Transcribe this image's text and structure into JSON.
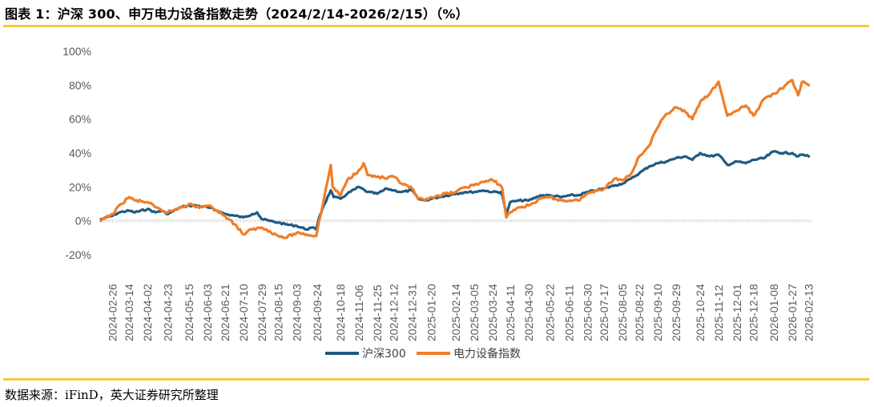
{
  "header": {
    "title": "图表 1：沪深 300、申万电力设备指数走势（2024/2/14-2026/2/15）（%）"
  },
  "footer": {
    "source": "数据来源：iFinD，英大证券研究所整理"
  },
  "chart_data": {
    "type": "line",
    "title": "图表 1：沪深 300、申万电力设备指数走势（2024/2/14-2026/2/15）（%）",
    "xlabel": "",
    "ylabel": "",
    "ylim": [
      -20,
      100
    ],
    "yticks": [
      -20,
      0,
      20,
      40,
      60,
      80,
      100
    ],
    "ytick_labels": [
      "-20%",
      "0%",
      "20%",
      "40%",
      "60%",
      "80%",
      "100%"
    ],
    "grid": false,
    "legend_position": "bottom-center",
    "x_start": "2024-02-14",
    "x_end": "2026-02-15",
    "xtick_labels": [
      "2024-02-26",
      "2024-03-14",
      "2024-04-02",
      "2024-04-23",
      "2024-05-15",
      "2024-06-03",
      "2024-06-21",
      "2024-07-10",
      "2024-07-29",
      "2024-08-15",
      "2024-09-03",
      "2024-09-24",
      "2024-10-18",
      "2024-11-06",
      "2024-11-25",
      "2024-12-12",
      "2024-12-31",
      "2025-01-20",
      "2025-02-14",
      "2025-03-05",
      "2025-03-24",
      "2025-04-11",
      "2025-04-30",
      "2025-05-22",
      "2025-06-11",
      "2025-06-30",
      "2025-07-17",
      "2025-08-05",
      "2025-08-22",
      "2025-09-10",
      "2025-09-29",
      "2025-10-24",
      "2025-11-12",
      "2025-12-01",
      "2025-12-18",
      "2026-01-08",
      "2026-01-27",
      "2026-02-13"
    ],
    "series": [
      {
        "name": "沪深300",
        "color": "#1F5A82",
        "points": [
          [
            "2024-02-14",
            1
          ],
          [
            "2024-02-26",
            3
          ],
          [
            "2024-03-04",
            5
          ],
          [
            "2024-03-14",
            6
          ],
          [
            "2024-03-20",
            5
          ],
          [
            "2024-04-02",
            7
          ],
          [
            "2024-04-10",
            5
          ],
          [
            "2024-04-17",
            6
          ],
          [
            "2024-04-23",
            4
          ],
          [
            "2024-05-06",
            8
          ],
          [
            "2024-05-15",
            9
          ],
          [
            "2024-05-22",
            9
          ],
          [
            "2024-06-03",
            8
          ],
          [
            "2024-06-13",
            6
          ],
          [
            "2024-06-21",
            4
          ],
          [
            "2024-07-01",
            3
          ],
          [
            "2024-07-10",
            2
          ],
          [
            "2024-07-19",
            4
          ],
          [
            "2024-07-24",
            5
          ],
          [
            "2024-07-29",
            1
          ],
          [
            "2024-08-06",
            0
          ],
          [
            "2024-08-15",
            -1
          ],
          [
            "2024-08-22",
            -2
          ],
          [
            "2024-09-03",
            -3
          ],
          [
            "2024-09-13",
            -5
          ],
          [
            "2024-09-18",
            -4
          ],
          [
            "2024-09-23",
            -5
          ],
          [
            "2024-09-26",
            2
          ],
          [
            "2024-09-30",
            8
          ],
          [
            "2024-10-08",
            18
          ],
          [
            "2024-10-11",
            14
          ],
          [
            "2024-10-18",
            13
          ],
          [
            "2024-10-25",
            16
          ],
          [
            "2024-11-06",
            20
          ],
          [
            "2024-11-15",
            17
          ],
          [
            "2024-11-25",
            16
          ],
          [
            "2024-12-05",
            19
          ],
          [
            "2024-12-12",
            18
          ],
          [
            "2024-12-20",
            17
          ],
          [
            "2024-12-31",
            18
          ],
          [
            "2025-01-06",
            13
          ],
          [
            "2025-01-13",
            12
          ],
          [
            "2025-01-20",
            13
          ],
          [
            "2025-01-27",
            14
          ],
          [
            "2025-02-14",
            16
          ],
          [
            "2025-02-24",
            17
          ],
          [
            "2025-03-05",
            17
          ],
          [
            "2025-03-14",
            18
          ],
          [
            "2025-03-24",
            17
          ],
          [
            "2025-04-01",
            17
          ],
          [
            "2025-04-03",
            15
          ],
          [
            "2025-04-07",
            4
          ],
          [
            "2025-04-11",
            11
          ],
          [
            "2025-04-20",
            12
          ],
          [
            "2025-04-30",
            12
          ],
          [
            "2025-05-12",
            15
          ],
          [
            "2025-05-22",
            15
          ],
          [
            "2025-06-03",
            14
          ],
          [
            "2025-06-11",
            15
          ],
          [
            "2025-06-20",
            15
          ],
          [
            "2025-06-30",
            17
          ],
          [
            "2025-07-08",
            18
          ],
          [
            "2025-07-17",
            19
          ],
          [
            "2025-07-28",
            21
          ],
          [
            "2025-08-05",
            22
          ],
          [
            "2025-08-14",
            25
          ],
          [
            "2025-08-22",
            28
          ],
          [
            "2025-09-01",
            32
          ],
          [
            "2025-09-10",
            34
          ],
          [
            "2025-09-19",
            35
          ],
          [
            "2025-09-29",
            37
          ],
          [
            "2025-10-09",
            38
          ],
          [
            "2025-10-16",
            36
          ],
          [
            "2025-10-24",
            40
          ],
          [
            "2025-11-03",
            38
          ],
          [
            "2025-11-12",
            39
          ],
          [
            "2025-11-21",
            33
          ],
          [
            "2025-12-01",
            35
          ],
          [
            "2025-12-10",
            34
          ],
          [
            "2025-12-18",
            36
          ],
          [
            "2025-12-29",
            37
          ],
          [
            "2026-01-08",
            41
          ],
          [
            "2026-01-16",
            40
          ],
          [
            "2026-01-27",
            40
          ],
          [
            "2026-02-02",
            38
          ],
          [
            "2026-02-06",
            39
          ],
          [
            "2026-02-13",
            38
          ]
        ]
      },
      {
        "name": "电力设备指数",
        "color": "#F07D28",
        "points": [
          [
            "2024-02-14",
            0
          ],
          [
            "2024-02-26",
            4
          ],
          [
            "2024-03-06",
            10
          ],
          [
            "2024-03-14",
            14
          ],
          [
            "2024-03-20",
            12
          ],
          [
            "2024-04-02",
            11
          ],
          [
            "2024-04-10",
            8
          ],
          [
            "2024-04-17",
            6
          ],
          [
            "2024-04-23",
            5
          ],
          [
            "2024-05-06",
            8
          ],
          [
            "2024-05-15",
            10
          ],
          [
            "2024-05-22",
            8
          ],
          [
            "2024-06-03",
            9
          ],
          [
            "2024-06-13",
            6
          ],
          [
            "2024-06-21",
            3
          ],
          [
            "2024-07-01",
            -2
          ],
          [
            "2024-07-10",
            -8
          ],
          [
            "2024-07-19",
            -5
          ],
          [
            "2024-07-29",
            -4
          ],
          [
            "2024-08-06",
            -6
          ],
          [
            "2024-08-15",
            -9
          ],
          [
            "2024-08-22",
            -10
          ],
          [
            "2024-09-03",
            -7
          ],
          [
            "2024-09-13",
            -8
          ],
          [
            "2024-09-23",
            -9
          ],
          [
            "2024-09-26",
            0
          ],
          [
            "2024-09-30",
            10
          ],
          [
            "2024-10-08",
            33
          ],
          [
            "2024-10-10",
            20
          ],
          [
            "2024-10-18",
            15
          ],
          [
            "2024-10-25",
            24
          ],
          [
            "2024-11-06",
            30
          ],
          [
            "2024-11-11",
            34
          ],
          [
            "2024-11-15",
            27
          ],
          [
            "2024-11-25",
            26
          ],
          [
            "2024-12-05",
            25
          ],
          [
            "2024-12-12",
            26
          ],
          [
            "2024-12-20",
            22
          ],
          [
            "2024-12-31",
            19
          ],
          [
            "2025-01-06",
            13
          ],
          [
            "2025-01-13",
            12
          ],
          [
            "2025-01-20",
            14
          ],
          [
            "2025-01-27",
            15
          ],
          [
            "2025-02-14",
            17
          ],
          [
            "2025-02-24",
            20
          ],
          [
            "2025-03-05",
            21
          ],
          [
            "2025-03-14",
            23
          ],
          [
            "2025-03-24",
            24
          ],
          [
            "2025-04-01",
            21
          ],
          [
            "2025-04-03",
            19
          ],
          [
            "2025-04-07",
            2
          ],
          [
            "2025-04-11",
            5
          ],
          [
            "2025-04-20",
            8
          ],
          [
            "2025-04-30",
            9
          ],
          [
            "2025-05-12",
            13
          ],
          [
            "2025-05-22",
            14
          ],
          [
            "2025-06-03",
            12
          ],
          [
            "2025-06-11",
            12
          ],
          [
            "2025-06-20",
            12
          ],
          [
            "2025-06-30",
            16
          ],
          [
            "2025-07-08",
            18
          ],
          [
            "2025-07-17",
            19
          ],
          [
            "2025-07-28",
            25
          ],
          [
            "2025-08-05",
            24
          ],
          [
            "2025-08-14",
            28
          ],
          [
            "2025-08-22",
            38
          ],
          [
            "2025-09-01",
            44
          ],
          [
            "2025-09-10",
            55
          ],
          [
            "2025-09-19",
            63
          ],
          [
            "2025-09-29",
            67
          ],
          [
            "2025-10-09",
            64
          ],
          [
            "2025-10-16",
            60
          ],
          [
            "2025-10-24",
            70
          ],
          [
            "2025-11-03",
            75
          ],
          [
            "2025-11-12",
            82
          ],
          [
            "2025-11-21",
            62
          ],
          [
            "2025-12-01",
            65
          ],
          [
            "2025-12-10",
            68
          ],
          [
            "2025-12-18",
            62
          ],
          [
            "2025-12-29",
            72
          ],
          [
            "2026-01-08",
            75
          ],
          [
            "2026-01-16",
            78
          ],
          [
            "2026-01-27",
            83
          ],
          [
            "2026-02-02",
            74
          ],
          [
            "2026-02-06",
            82
          ],
          [
            "2026-02-13",
            80
          ]
        ]
      }
    ]
  }
}
